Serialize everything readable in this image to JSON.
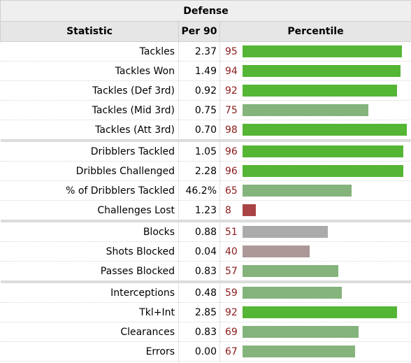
{
  "title": "Defense",
  "headers": {
    "statistic": "Statistic",
    "per90": "Per 90",
    "percentile": "Percentile"
  },
  "colors": {
    "high": "#55b535",
    "mid": "#84b37c",
    "neutral": "#ababab",
    "low_mid": "#ad9797",
    "low": "#a94444",
    "number": "#8a1a1a"
  },
  "rows": [
    {
      "stat": "Tackles",
      "per90": "2.37",
      "percentile": "95",
      "bar_color": "high"
    },
    {
      "stat": "Tackles Won",
      "per90": "1.49",
      "percentile": "94",
      "bar_color": "high"
    },
    {
      "stat": "Tackles (Def 3rd)",
      "per90": "0.92",
      "percentile": "92",
      "bar_color": "high"
    },
    {
      "stat": "Tackles (Mid 3rd)",
      "per90": "0.75",
      "percentile": "75",
      "bar_color": "mid"
    },
    {
      "stat": "Tackles (Att 3rd)",
      "per90": "0.70",
      "percentile": "98",
      "bar_color": "high"
    },
    {
      "stat": "Dribblers Tackled",
      "per90": "1.05",
      "percentile": "96",
      "bar_color": "high",
      "group_start": true
    },
    {
      "stat": "Dribbles Challenged",
      "per90": "2.28",
      "percentile": "96",
      "bar_color": "high"
    },
    {
      "stat": "% of Dribblers Tackled",
      "per90": "46.2%",
      "percentile": "65",
      "bar_color": "mid"
    },
    {
      "stat": "Challenges Lost",
      "per90": "1.23",
      "percentile": "8",
      "bar_color": "low"
    },
    {
      "stat": "Blocks",
      "per90": "0.88",
      "percentile": "51",
      "bar_color": "neutral",
      "group_start": true
    },
    {
      "stat": "Shots Blocked",
      "per90": "0.04",
      "percentile": "40",
      "bar_color": "low_mid"
    },
    {
      "stat": "Passes Blocked",
      "per90": "0.83",
      "percentile": "57",
      "bar_color": "mid"
    },
    {
      "stat": "Interceptions",
      "per90": "0.48",
      "percentile": "59",
      "bar_color": "mid",
      "group_start": true
    },
    {
      "stat": "Tkl+Int",
      "per90": "2.85",
      "percentile": "92",
      "bar_color": "high"
    },
    {
      "stat": "Clearances",
      "per90": "0.83",
      "percentile": "69",
      "bar_color": "mid"
    },
    {
      "stat": "Errors",
      "per90": "0.00",
      "percentile": "67",
      "bar_color": "mid"
    }
  ]
}
